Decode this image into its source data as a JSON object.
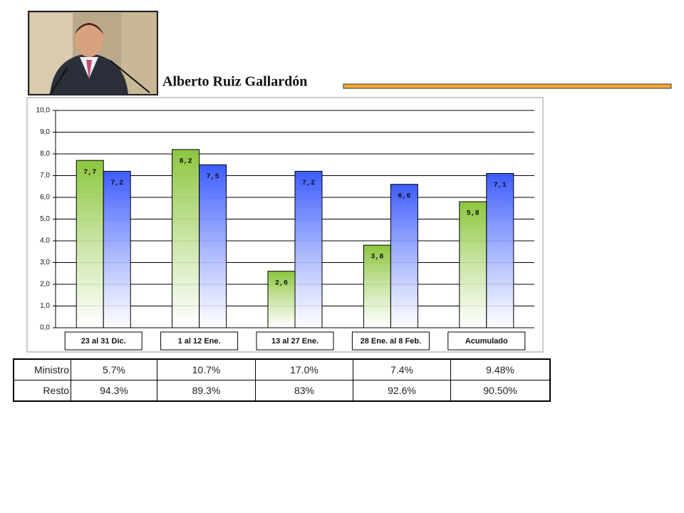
{
  "title": "Alberto Ruiz Gallardón",
  "chart_data": {
    "type": "bar",
    "categories": [
      "23 al 31 Dic.",
      "1 al 12 Ene.",
      "13 al 27 Ene.",
      "28 Ene. al 8 Feb.",
      "Acumulado"
    ],
    "series": [
      {
        "color": "#8cc63e",
        "values": [
          7.7,
          8.2,
          2.6,
          3.8,
          5.8
        ],
        "value_labels": [
          "7,7",
          "8,2",
          "2,6",
          "3,8",
          "5,8"
        ]
      },
      {
        "color": "#3d5cff",
        "values": [
          7.2,
          7.5,
          7.2,
          6.6,
          7.1
        ],
        "value_labels": [
          "7,2",
          "7,5",
          "7,2",
          "6,6",
          "7,1"
        ]
      }
    ],
    "ylim": [
      0,
      10
    ],
    "yticks": [
      {
        "value": 0,
        "label": "0,0"
      },
      {
        "value": 1,
        "label": "1,0"
      },
      {
        "value": 2,
        "label": "2,0"
      },
      {
        "value": 3,
        "label": "3,0"
      },
      {
        "value": 4,
        "label": "4,0"
      },
      {
        "value": 5,
        "label": "5,0"
      },
      {
        "value": 6,
        "label": "6,0"
      },
      {
        "value": 7,
        "label": "7,0"
      },
      {
        "value": 8,
        "label": "8,0"
      },
      {
        "value": 9,
        "label": "9,0"
      },
      {
        "value": 10,
        "label": "10,0"
      }
    ],
    "grid": true
  },
  "table": {
    "rows": [
      [
        "Ministro",
        "5.7%",
        "10.7%",
        "17.0%",
        "7.4%",
        "9.48%"
      ],
      [
        "Resto",
        "94.3%",
        "89.3%",
        "83%",
        "92.6%",
        "90.50%"
      ]
    ]
  }
}
